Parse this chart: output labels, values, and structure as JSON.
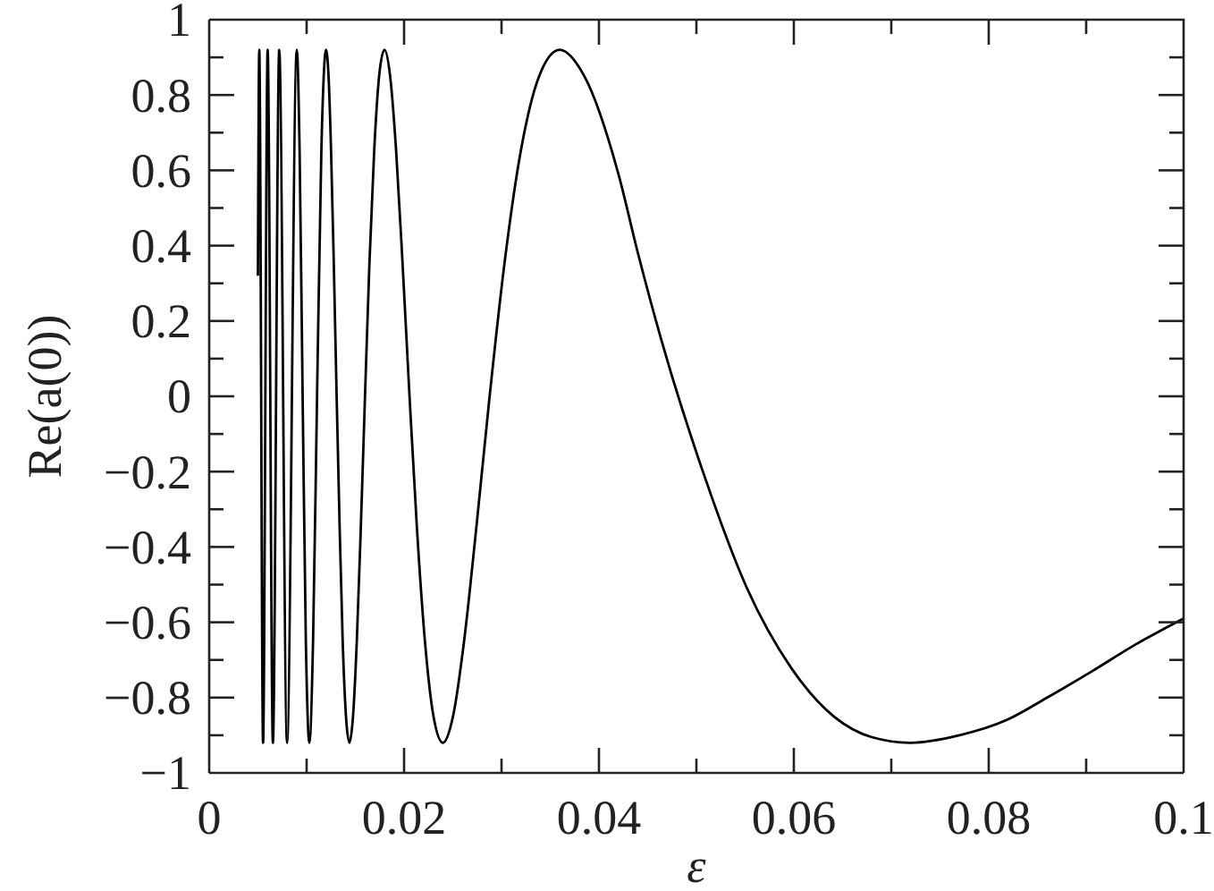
{
  "chart_data": {
    "type": "line",
    "xlabel": "ε",
    "ylabel": "Re(a(0))",
    "x": [
      0.005,
      0.00514,
      0.00553,
      0.006,
      0.00654,
      0.00719,
      0.00799,
      0.00899,
      0.00928,
      0.00959,
      0.00992,
      0.01028,
      0.01066,
      0.01107,
      0.01151,
      0.01199,
      0.01225,
      0.01251,
      0.01279,
      0.01308,
      0.01339,
      0.0137,
      0.01404,
      0.01439,
      0.01476,
      0.01515,
      0.01556,
      0.01599,
      0.01644,
      0.01693,
      0.01744,
      0.01799,
      0.01857,
      0.01919,
      0.01985,
      0.02056,
      0.02132,
      0.02214,
      0.02302,
      0.02398,
      0.02502,
      0.02616,
      0.02741,
      0.02878,
      0.03029,
      0.03197,
      0.03386,
      0.03597,
      0.0385,
      0.042,
      0.044,
      0.0464,
      0.0508,
      0.0552,
      0.0597,
      0.0641,
      0.068,
      0.072,
      0.077,
      0.0818,
      0.086,
      0.0906,
      0.095,
      0.1
    ],
    "values": [
      0.32,
      0.92,
      -0.92,
      0.92,
      -0.92,
      0.92,
      -0.92,
      0.92,
      0.65,
      0,
      -0.65,
      -0.92,
      -0.65,
      0,
      0.65,
      0.92,
      0.85,
      0.65,
      0.35,
      0,
      -0.35,
      -0.65,
      -0.85,
      -0.92,
      -0.85,
      -0.65,
      -0.35,
      0,
      0.35,
      0.65,
      0.85,
      0.92,
      0.85,
      0.65,
      0.35,
      0,
      -0.35,
      -0.65,
      -0.85,
      -0.92,
      -0.85,
      -0.65,
      -0.35,
      0,
      0.35,
      0.65,
      0.85,
      0.92,
      0.85,
      0.59,
      0.38,
      0.15,
      -0.21,
      -0.51,
      -0.72,
      -0.85,
      -0.905,
      -0.92,
      -0.9,
      -0.86,
      -0.8,
      -0.73,
      -0.66,
      -0.59
    ],
    "color": "#000000",
    "xlim": [
      0,
      0.1
    ],
    "ylim": [
      -1,
      1
    ],
    "xticks": [
      0,
      {
        "value": 0.01,
        "label": null
      },
      0.02,
      {
        "value": 0.03,
        "label": null
      },
      0.04,
      {
        "value": 0.05,
        "label": null
      },
      0.06,
      {
        "value": 0.07,
        "label": null
      },
      0.08,
      {
        "value": 0.09,
        "label": null
      },
      0.1
    ],
    "yticks": [
      {
        "value": -1,
        "label": "−1"
      },
      {
        "value": -0.9,
        "label": null
      },
      {
        "value": -0.8,
        "label": "−0.8"
      },
      {
        "value": -0.7,
        "label": null
      },
      {
        "value": -0.6,
        "label": "−0.6"
      },
      {
        "value": -0.5,
        "label": null
      },
      {
        "value": -0.4,
        "label": "−0.4"
      },
      {
        "value": -0.3,
        "label": null
      },
      {
        "value": -0.2,
        "label": "−0.2"
      },
      {
        "value": -0.1,
        "label": null
      },
      0,
      {
        "value": 0.1,
        "label": null
      },
      0.2,
      {
        "value": 0.3,
        "label": null
      },
      0.4,
      {
        "value": 0.5,
        "label": null
      },
      0.6,
      {
        "value": 0.7,
        "label": null
      },
      0.8,
      {
        "value": 0.9,
        "label": null
      },
      1
    ]
  }
}
